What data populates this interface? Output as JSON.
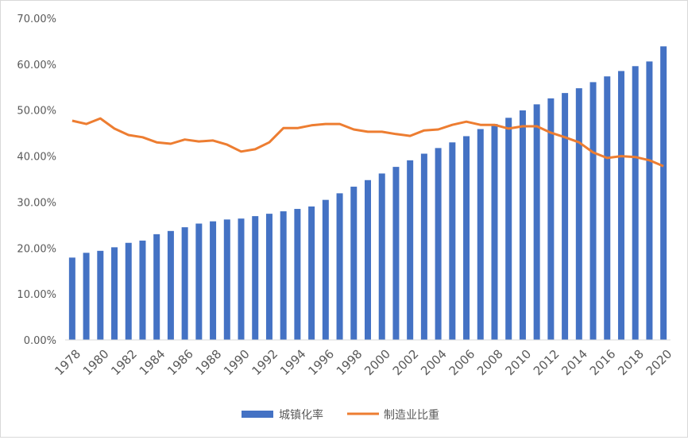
{
  "chart_data": {
    "type": "bar+line",
    "title": "",
    "xlabel": "",
    "ylabel": "",
    "ylim": [
      0,
      70
    ],
    "yticks": [
      "0.00%",
      "10.00%",
      "20.00%",
      "30.00%",
      "40.00%",
      "50.00%",
      "60.00%",
      "70.00%"
    ],
    "grid": false,
    "legend_position": "bottom",
    "categories": [
      1978,
      1979,
      1980,
      1981,
      1982,
      1983,
      1984,
      1985,
      1986,
      1987,
      1988,
      1989,
      1990,
      1991,
      1992,
      1993,
      1994,
      1995,
      1996,
      1997,
      1998,
      1999,
      2000,
      2001,
      2002,
      2003,
      2004,
      2005,
      2006,
      2007,
      2008,
      2009,
      2010,
      2011,
      2012,
      2013,
      2014,
      2015,
      2016,
      2017,
      2018,
      2019,
      2020
    ],
    "series": [
      {
        "name": "城镇化率",
        "type": "bar",
        "color": "#4472C4",
        "values": [
          17.92,
          18.96,
          19.39,
          20.16,
          21.13,
          21.62,
          23.01,
          23.71,
          24.52,
          25.32,
          25.81,
          26.21,
          26.41,
          26.94,
          27.46,
          27.99,
          28.51,
          29.04,
          30.48,
          31.91,
          33.35,
          34.78,
          36.22,
          37.66,
          39.09,
          40.53,
          41.76,
          42.99,
          44.34,
          45.89,
          46.99,
          48.34,
          49.95,
          51.27,
          52.57,
          53.73,
          54.77,
          56.1,
          57.35,
          58.52,
          59.58,
          60.6,
          63.89
        ]
      },
      {
        "name": "制造业比重",
        "type": "line",
        "color": "#ED7D31",
        "values": [
          47.7,
          47.0,
          48.2,
          46.0,
          44.6,
          44.1,
          43.0,
          42.7,
          43.6,
          43.2,
          43.4,
          42.5,
          41.0,
          41.5,
          43.0,
          46.1,
          46.1,
          46.7,
          47.0,
          47.0,
          45.8,
          45.3,
          45.3,
          44.8,
          44.4,
          45.6,
          45.8,
          46.8,
          47.5,
          46.8,
          46.8,
          46.0,
          46.5,
          46.5,
          45.1,
          44.1,
          43.0,
          40.8,
          39.6,
          40.0,
          39.8,
          39.1,
          37.8
        ]
      }
    ]
  }
}
